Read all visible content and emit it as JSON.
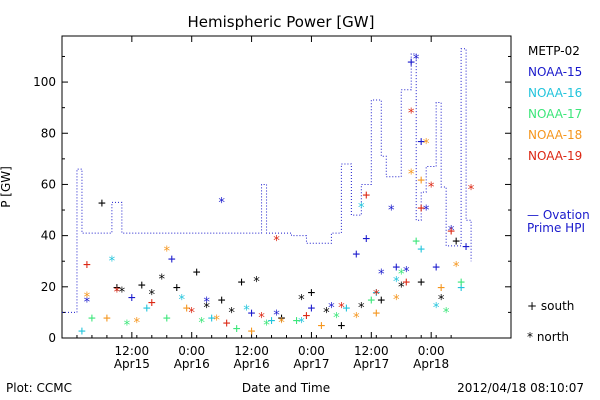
{
  "chart_data": {
    "type": "scatter",
    "title": "Hemispheric Power [GW]",
    "xlabel": "Date and Time",
    "ylabel": "P [GW]",
    "xlim": [
      "2012-04-14T22:00",
      "2012-04-18T16:00"
    ],
    "ylim": [
      0,
      118
    ],
    "grid": false,
    "x_ticks": [
      {
        "t": "2012-04-15T12:00",
        "line1": "12:00",
        "line2": "Apr15"
      },
      {
        "t": "2012-04-16T00:00",
        "line1": "0:00",
        "line2": "Apr16"
      },
      {
        "t": "2012-04-16T12:00",
        "line1": "12:00",
        "line2": "Apr16"
      },
      {
        "t": "2012-04-17T00:00",
        "line1": "0:00",
        "line2": "Apr17"
      },
      {
        "t": "2012-04-17T12:00",
        "line1": "12:00",
        "line2": "Apr17"
      },
      {
        "t": "2012-04-18T00:00",
        "line1": "0:00",
        "line2": "Apr18"
      }
    ],
    "y_ticks": [
      0,
      20,
      40,
      60,
      80,
      100
    ],
    "legend": {
      "placement": "right",
      "satellites": [
        {
          "name": "METP-02",
          "color": "#000000"
        },
        {
          "name": "NOAA-15",
          "color": "#1a1acc"
        },
        {
          "name": "NOAA-16",
          "color": "#22c4dc"
        },
        {
          "name": "NOAA-17",
          "color": "#3ce67a"
        },
        {
          "name": "NOAA-18",
          "color": "#f5961e"
        },
        {
          "name": "NOAA-19",
          "color": "#dc2814"
        }
      ],
      "model": {
        "line1": "— Ovation",
        "line2": "Prime HPI",
        "color": "#1a1acc"
      },
      "markers": [
        {
          "symbol": "+",
          "label": "south"
        },
        {
          "symbol": "*",
          "label": "north"
        }
      ]
    },
    "series": [
      {
        "name": "— Ovation Prime HPI",
        "style": "dotted-step",
        "color": "#1a1acc",
        "points": [
          [
            "2012-04-14T22:00",
            10
          ],
          [
            "2012-04-15T01:00",
            66
          ],
          [
            "2012-04-15T02:00",
            41
          ],
          [
            "2012-04-15T08:00",
            53
          ],
          [
            "2012-04-15T10:00",
            41
          ],
          [
            "2012-04-16T14:00",
            60
          ],
          [
            "2012-04-16T15:00",
            41
          ],
          [
            "2012-04-16T20:00",
            40
          ],
          [
            "2012-04-16T23:00",
            37
          ],
          [
            "2012-04-17T04:00",
            41
          ],
          [
            "2012-04-17T06:00",
            68
          ],
          [
            "2012-04-17T08:00",
            48
          ],
          [
            "2012-04-17T10:00",
            60
          ],
          [
            "2012-04-17T12:00",
            93
          ],
          [
            "2012-04-17T14:00",
            71
          ],
          [
            "2012-04-17T15:00",
            63
          ],
          [
            "2012-04-17T18:00",
            97
          ],
          [
            "2012-04-17T20:00",
            111
          ],
          [
            "2012-04-17T21:00",
            46
          ],
          [
            "2012-04-17T22:00",
            57
          ],
          [
            "2012-04-17T23:00",
            67
          ],
          [
            "2012-04-18T01:00",
            92
          ],
          [
            "2012-04-18T02:00",
            59
          ],
          [
            "2012-04-18T03:00",
            36
          ],
          [
            "2012-04-18T06:00",
            113
          ],
          [
            "2012-04-18T07:00",
            46
          ],
          [
            "2012-04-18T08:00",
            30
          ]
        ]
      },
      {
        "name": "METP-02",
        "color": "#000000",
        "points": [
          [
            "2012-04-15T06:00",
            53,
            "+"
          ],
          [
            "2012-04-15T09:00",
            20,
            "+"
          ],
          [
            "2012-04-15T10:00",
            18,
            "*"
          ],
          [
            "2012-04-15T14:00",
            21,
            "+"
          ],
          [
            "2012-04-15T16:00",
            17,
            "*"
          ],
          [
            "2012-04-15T18:00",
            23,
            "*"
          ],
          [
            "2012-04-15T21:00",
            20,
            "+"
          ],
          [
            "2012-04-16T01:00",
            26,
            "+"
          ],
          [
            "2012-04-16T03:00",
            12,
            "*"
          ],
          [
            "2012-04-16T06:00",
            15,
            "+"
          ],
          [
            "2012-04-16T08:00",
            10,
            "*"
          ],
          [
            "2012-04-16T10:00",
            22,
            "+"
          ],
          [
            "2012-04-16T13:00",
            22,
            "*"
          ],
          [
            "2012-04-16T18:00",
            8,
            "+"
          ],
          [
            "2012-04-16T22:00",
            15,
            "*"
          ],
          [
            "2012-04-17T00:00",
            18,
            "+"
          ],
          [
            "2012-04-17T03:00",
            10,
            "*"
          ],
          [
            "2012-04-17T06:00",
            5,
            "+"
          ],
          [
            "2012-04-17T10:00",
            12,
            "*"
          ],
          [
            "2012-04-17T14:00",
            15,
            "+"
          ],
          [
            "2012-04-17T18:00",
            20,
            "*"
          ],
          [
            "2012-04-17T22:00",
            22,
            "+"
          ],
          [
            "2012-04-18T02:00",
            15,
            "*"
          ],
          [
            "2012-04-18T05:00",
            38,
            "+"
          ]
        ]
      },
      {
        "name": "NOAA-15",
        "color": "#1a1acc",
        "points": [
          [
            "2012-04-15T03:00",
            14,
            "*"
          ],
          [
            "2012-04-15T12:00",
            16,
            "+"
          ],
          [
            "2012-04-15T20:00",
            31,
            "+"
          ],
          [
            "2012-04-16T03:00",
            14,
            "*"
          ],
          [
            "2012-04-16T06:00",
            53,
            "*"
          ],
          [
            "2012-04-16T12:00",
            10,
            "+"
          ],
          [
            "2012-04-16T17:00",
            9,
            "*"
          ],
          [
            "2012-04-17T00:00",
            12,
            "+"
          ],
          [
            "2012-04-17T04:00",
            12,
            "*"
          ],
          [
            "2012-04-17T09:00",
            33,
            "+"
          ],
          [
            "2012-04-17T11:00",
            39,
            "+"
          ],
          [
            "2012-04-17T14:00",
            25,
            "*"
          ],
          [
            "2012-04-17T16:00",
            50,
            "*"
          ],
          [
            "2012-04-17T17:00",
            28,
            "+"
          ],
          [
            "2012-04-17T19:00",
            26,
            "*"
          ],
          [
            "2012-04-17T20:00",
            108,
            "+"
          ],
          [
            "2012-04-17T21:00",
            109,
            "*"
          ],
          [
            "2012-04-17T22:00",
            77,
            "+"
          ],
          [
            "2012-04-17T23:00",
            50,
            "*"
          ],
          [
            "2012-04-18T01:00",
            28,
            "+"
          ],
          [
            "2012-04-18T04:00",
            42,
            "*"
          ],
          [
            "2012-04-18T07:00",
            36,
            "+"
          ]
        ]
      },
      {
        "name": "NOAA-16",
        "color": "#22c4dc",
        "points": [
          [
            "2012-04-15T02:00",
            3,
            "+"
          ],
          [
            "2012-04-15T08:00",
            30,
            "*"
          ],
          [
            "2012-04-15T15:00",
            12,
            "+"
          ],
          [
            "2012-04-15T22:00",
            15,
            "*"
          ],
          [
            "2012-04-16T04:00",
            8,
            "+"
          ],
          [
            "2012-04-16T11:00",
            11,
            "*"
          ],
          [
            "2012-04-16T16:00",
            7,
            "+"
          ],
          [
            "2012-04-16T22:00",
            6,
            "*"
          ],
          [
            "2012-04-17T07:00",
            12,
            "+"
          ],
          [
            "2012-04-17T10:00",
            51,
            "*"
          ],
          [
            "2012-04-17T13:00",
            18,
            "+"
          ],
          [
            "2012-04-17T17:00",
            22,
            "*"
          ],
          [
            "2012-04-17T22:00",
            35,
            "+"
          ],
          [
            "2012-04-18T01:00",
            12,
            "*"
          ],
          [
            "2012-04-18T06:00",
            20,
            "+"
          ]
        ]
      },
      {
        "name": "NOAA-17",
        "color": "#3ce67a",
        "points": [
          [
            "2012-04-15T04:00",
            8,
            "+"
          ],
          [
            "2012-04-15T11:00",
            5,
            "*"
          ],
          [
            "2012-04-15T19:00",
            8,
            "+"
          ],
          [
            "2012-04-16T02:00",
            6,
            "*"
          ],
          [
            "2012-04-16T09:00",
            4,
            "+"
          ],
          [
            "2012-04-16T15:00",
            5,
            "*"
          ],
          [
            "2012-04-16T21:00",
            7,
            "+"
          ],
          [
            "2012-04-17T05:00",
            8,
            "*"
          ],
          [
            "2012-04-17T12:00",
            15,
            "+"
          ],
          [
            "2012-04-17T18:00",
            25,
            "*"
          ],
          [
            "2012-04-17T21:00",
            38,
            "+"
          ],
          [
            "2012-04-18T03:00",
            10,
            "*"
          ],
          [
            "2012-04-18T06:00",
            22,
            "+"
          ]
        ]
      },
      {
        "name": "NOAA-18",
        "color": "#f5961e",
        "points": [
          [
            "2012-04-15T03:00",
            16,
            "*"
          ],
          [
            "2012-04-15T07:00",
            8,
            "+"
          ],
          [
            "2012-04-15T13:00",
            6,
            "*"
          ],
          [
            "2012-04-15T19:00",
            34,
            "*"
          ],
          [
            "2012-04-15T23:00",
            12,
            "+"
          ],
          [
            "2012-04-16T05:00",
            7,
            "*"
          ],
          [
            "2012-04-16T12:00",
            3,
            "+"
          ],
          [
            "2012-04-16T18:00",
            6,
            "*"
          ],
          [
            "2012-04-17T02:00",
            5,
            "+"
          ],
          [
            "2012-04-17T09:00",
            8,
            "*"
          ],
          [
            "2012-04-17T13:00",
            10,
            "+"
          ],
          [
            "2012-04-17T17:00",
            15,
            "*"
          ],
          [
            "2012-04-17T20:00",
            64,
            "*"
          ],
          [
            "2012-04-17T22:00",
            62,
            "+"
          ],
          [
            "2012-04-17T23:00",
            76,
            "*"
          ],
          [
            "2012-04-18T02:00",
            20,
            "+"
          ],
          [
            "2012-04-18T05:00",
            28,
            "*"
          ]
        ]
      },
      {
        "name": "NOAA-19",
        "color": "#dc2814",
        "points": [
          [
            "2012-04-15T03:00",
            29,
            "+"
          ],
          [
            "2012-04-15T09:00",
            18,
            "*"
          ],
          [
            "2012-04-15T16:00",
            14,
            "+"
          ],
          [
            "2012-04-16T00:00",
            10,
            "*"
          ],
          [
            "2012-04-16T07:00",
            6,
            "+"
          ],
          [
            "2012-04-16T14:00",
            8,
            "*"
          ],
          [
            "2012-04-16T17:00",
            38,
            "*"
          ],
          [
            "2012-04-16T23:00",
            9,
            "+"
          ],
          [
            "2012-04-17T06:00",
            12,
            "*"
          ],
          [
            "2012-04-17T11:00",
            56,
            "+"
          ],
          [
            "2012-04-17T13:00",
            17,
            "*"
          ],
          [
            "2012-04-17T19:00",
            22,
            "+"
          ],
          [
            "2012-04-17T20:00",
            88,
            "*"
          ],
          [
            "2012-04-17T22:00",
            51,
            "+"
          ],
          [
            "2012-04-18T00:00",
            59,
            "*"
          ],
          [
            "2012-04-18T04:00",
            42,
            "+"
          ],
          [
            "2012-04-18T08:00",
            58,
            "*"
          ]
        ]
      }
    ]
  },
  "footer": {
    "left": "Plot: CCMC",
    "right": "2012/04/18 08:10:07"
  }
}
